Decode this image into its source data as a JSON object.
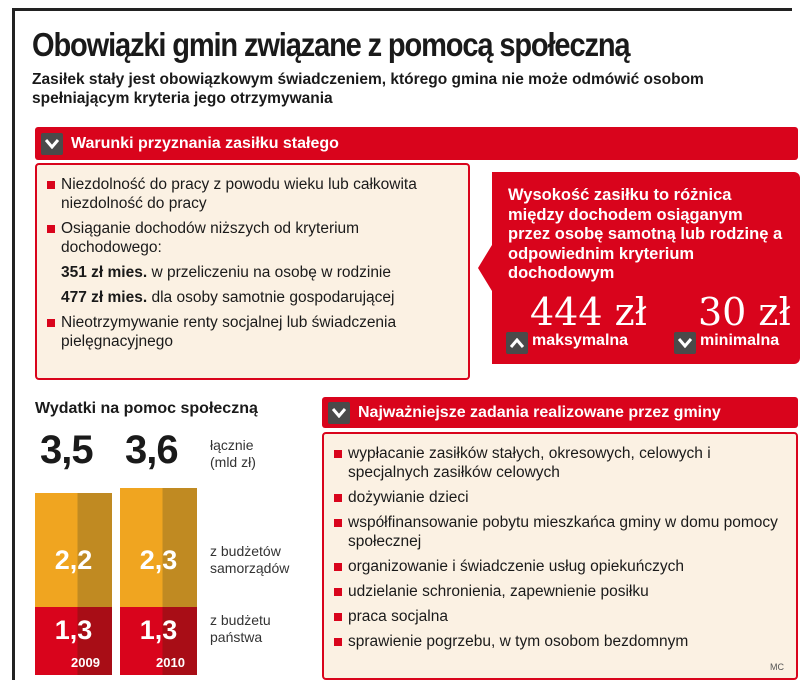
{
  "title": "Obowiązki gmin związane z pomocą społeczną",
  "subtitle": "Zasiłek stały jest obowiązkowym świadczeniem, którego gmina nie może odmówić osobom spełniającym kryteria jego otrzymywania",
  "conditions": {
    "header": "Warunki przyznania zasiłku stałego",
    "items": [
      "Niezdolność do pracy z powodu wieku lub całkowita niezdolność do pracy",
      "Osiąganie dochodów niższych od kryterium dochodowego:"
    ],
    "criteria": [
      {
        "amount": "351 zł mies.",
        "text": "w przeliczeniu na osobę w rodzinie"
      },
      {
        "amount": "477 zł mies.",
        "text": "dla osoby samotnie gospodarującej"
      }
    ],
    "last_item": "Nieotrzymywanie renty socjalnej lub świadczenia pielęgnacyjnego"
  },
  "callout": {
    "text": "Wysokość zasiłku to różnica między dochodem osiąganym przez osobę samotną lub rodzinę a odpowiednim kryterium dochodowym",
    "max_value": "444 zł",
    "max_label": "maksymalna",
    "min_value": "30 zł",
    "min_label": "minimalna"
  },
  "tasks": {
    "header": "Najważniejsze zadania realizowane przez gminy",
    "items": [
      "wypłacanie zasiłków stałych, okresowych, celowych i specjalnych zasiłków celowych",
      "dożywianie dzieci",
      "współfinansowanie pobytu mieszkańca gminy w domu pomocy społecznej",
      "organizowanie i świadczenie usług opiekuńczych",
      "udzielanie schronienia, zapewnienie posiłku",
      "praca socjalna",
      "sprawienie pogrzebu, w tym osobom bezdomnym"
    ]
  },
  "credit": "MC",
  "chart_data": {
    "type": "bar",
    "title": "Wydatki na pomoc społeczną",
    "categories": [
      "2009",
      "2010"
    ],
    "totals": [
      "3,5",
      "3,6"
    ],
    "total_label": "łącznie (mld zł)",
    "series": [
      {
        "name": "z budżetów samorządów",
        "values": [
          2.2,
          2.3
        ],
        "labels": [
          "2,2",
          "2,3"
        ],
        "color": "#f0a520"
      },
      {
        "name": "z budżetu państwa",
        "values": [
          1.3,
          1.3
        ],
        "labels": [
          "1,3",
          "1,3"
        ],
        "color": "#d9041c"
      }
    ]
  }
}
